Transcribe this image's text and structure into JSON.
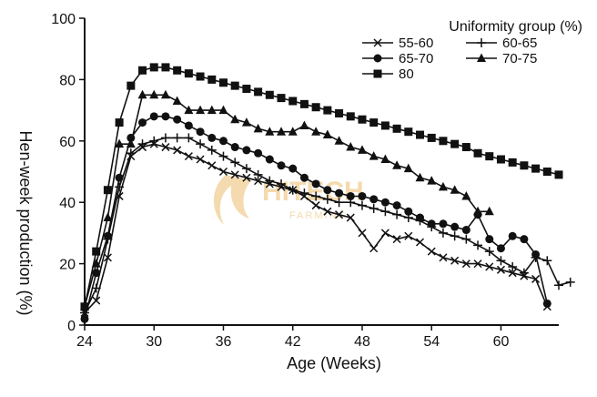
{
  "chart_data": {
    "type": "line",
    "title": "",
    "xlabel": "Age (Weeks)",
    "ylabel": "Hen-week production (%)",
    "xlim": [
      24,
      65
    ],
    "ylim": [
      0,
      100
    ],
    "xticks": [
      24,
      30,
      36,
      42,
      48,
      54,
      60
    ],
    "yticks": [
      0,
      20,
      40,
      60,
      80,
      100
    ],
    "legend": {
      "title": "Uniformity group (%)",
      "placement": "top-right"
    },
    "series": [
      {
        "name": "55-60",
        "marker": "x",
        "x": [
          24,
          25,
          26,
          27,
          28,
          29,
          30,
          31,
          32,
          33,
          34,
          35,
          36,
          37,
          38,
          39,
          40,
          41,
          42,
          43,
          44,
          45,
          46,
          47,
          48,
          49,
          50,
          51,
          52,
          53,
          54,
          55,
          56,
          57,
          58,
          59,
          60,
          61,
          62,
          63,
          64
        ],
        "y": [
          4,
          8,
          22,
          42,
          55,
          58,
          59,
          58,
          57,
          55,
          54,
          52,
          50,
          49,
          48,
          47,
          46,
          45,
          44,
          42,
          39,
          37,
          36,
          35,
          30,
          25,
          30,
          28,
          29,
          27,
          24,
          22,
          21,
          20,
          20,
          19,
          18,
          17,
          16,
          15,
          6
        ]
      },
      {
        "name": "60-65",
        "marker": "+",
        "x": [
          24,
          25,
          26,
          27,
          28,
          29,
          30,
          31,
          32,
          33,
          34,
          35,
          36,
          37,
          38,
          39,
          40,
          41,
          42,
          43,
          44,
          45,
          46,
          47,
          48,
          49,
          50,
          51,
          52,
          53,
          54,
          55,
          56,
          57,
          58,
          59,
          60,
          61,
          62,
          63,
          64,
          65,
          66
        ],
        "y": [
          4,
          12,
          28,
          45,
          56,
          59,
          60,
          61,
          61,
          61,
          59,
          57,
          55,
          53,
          51,
          49,
          47,
          46,
          44,
          43,
          42,
          41,
          40,
          40,
          39,
          38,
          37,
          36,
          35,
          34,
          32,
          30,
          29,
          28,
          26,
          24,
          21,
          19,
          17,
          22,
          21,
          13,
          14
        ]
      },
      {
        "name": "65-70",
        "marker": "circle",
        "x": [
          24,
          25,
          26,
          27,
          28,
          29,
          30,
          31,
          32,
          33,
          34,
          35,
          36,
          37,
          38,
          39,
          40,
          41,
          42,
          43,
          44,
          45,
          46,
          47,
          48,
          49,
          50,
          51,
          52,
          53,
          54,
          55,
          56,
          57,
          58,
          59,
          60,
          61,
          62,
          63,
          64
        ],
        "y": [
          2,
          17,
          29,
          48,
          61,
          66,
          68,
          68,
          67,
          65,
          63,
          61,
          60,
          58,
          57,
          56,
          54,
          52,
          51,
          48,
          46,
          44,
          43,
          42,
          42,
          41,
          40,
          39,
          37,
          35,
          33,
          33,
          32,
          31,
          36,
          28,
          25,
          29,
          28,
          23,
          7
        ]
      },
      {
        "name": "70-75",
        "marker": "triangle",
        "x": [
          24,
          25,
          26,
          27,
          28,
          29,
          30,
          31,
          32,
          33,
          34,
          35,
          36,
          37,
          38,
          39,
          40,
          41,
          42,
          43,
          44,
          45,
          46,
          47,
          48,
          49,
          50,
          51,
          52,
          53,
          54,
          55,
          56,
          57,
          58,
          59
        ],
        "y": [
          6,
          20,
          35,
          59,
          59,
          75,
          75,
          75,
          73,
          70,
          70,
          70,
          70,
          67,
          66,
          64,
          63,
          63,
          63,
          65,
          63,
          62,
          60,
          58,
          57,
          55,
          54,
          52,
          51,
          48,
          47,
          45,
          44,
          42,
          37,
          37
        ]
      },
      {
        "name": "80",
        "marker": "square",
        "x": [
          24,
          25,
          26,
          27,
          28,
          29,
          30,
          31,
          32,
          33,
          34,
          35,
          36,
          37,
          38,
          39,
          40,
          41,
          42,
          43,
          44,
          45,
          46,
          47,
          48,
          49,
          50,
          51,
          52,
          53,
          54,
          55,
          56,
          57,
          58,
          59,
          60,
          61,
          62,
          63,
          64,
          65
        ],
        "y": [
          6,
          24,
          44,
          66,
          78,
          83,
          84,
          84,
          83,
          82,
          81,
          80,
          79,
          78,
          77,
          76,
          75,
          74,
          73,
          72,
          71,
          70,
          69,
          68,
          67,
          66,
          65,
          64,
          63,
          62,
          61,
          60,
          59,
          58,
          56,
          55,
          54,
          53,
          52,
          51,
          50,
          49
        ]
      }
    ]
  },
  "watermark": {
    "brand": "HITECH",
    "sub": "FARMING",
    "color": "#f3d6a6"
  }
}
